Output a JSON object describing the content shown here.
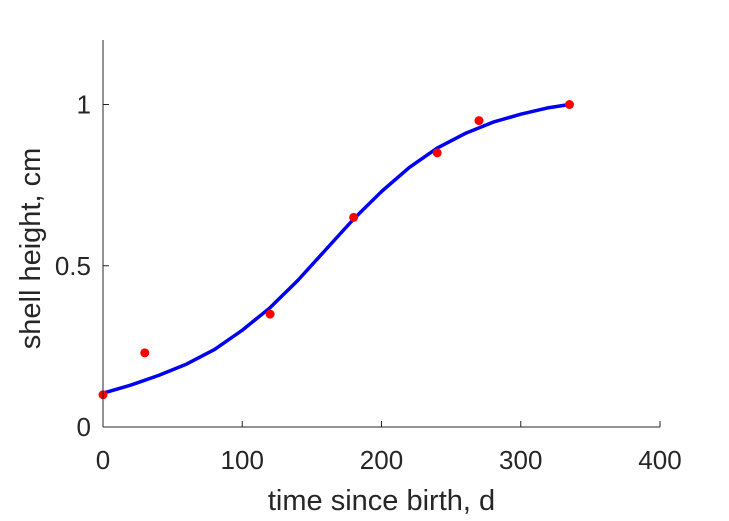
{
  "chart_data": {
    "type": "scatter",
    "xlabel": "time since birth, d",
    "ylabel": "shell height, cm",
    "xlim": [
      0,
      400
    ],
    "ylim": [
      0,
      1.2
    ],
    "x_ticks": [
      {
        "value": 0,
        "label": "0"
      },
      {
        "value": 100,
        "label": "100"
      },
      {
        "value": 200,
        "label": "200"
      },
      {
        "value": 300,
        "label": "300"
      },
      {
        "value": 400,
        "label": "400"
      }
    ],
    "y_ticks": [
      {
        "value": 0,
        "label": "0"
      },
      {
        "value": 0.5,
        "label": "0.5"
      },
      {
        "value": 1,
        "label": "1"
      }
    ],
    "grid": false,
    "series": [
      {
        "kind": "points",
        "color": "#ff0000",
        "x": [
          0,
          30,
          120,
          180,
          240,
          270,
          335
        ],
        "y": [
          0.1,
          0.23,
          0.35,
          0.65,
          0.85,
          0.95,
          1.0
        ]
      },
      {
        "kind": "line",
        "color": "#0000ee",
        "x": [
          0,
          20,
          40,
          60,
          80,
          100,
          120,
          140,
          160,
          180,
          200,
          220,
          240,
          260,
          280,
          300,
          320,
          335
        ],
        "y": [
          0.105,
          0.13,
          0.16,
          0.195,
          0.24,
          0.3,
          0.37,
          0.455,
          0.55,
          0.645,
          0.73,
          0.805,
          0.865,
          0.91,
          0.945,
          0.97,
          0.99,
          1.0
        ]
      }
    ]
  }
}
